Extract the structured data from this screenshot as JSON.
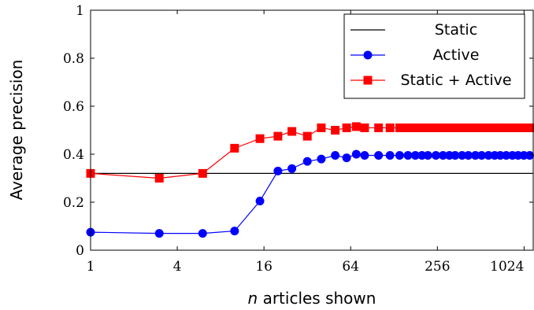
{
  "chart_data": {
    "type": "line",
    "title": "",
    "xlabel": "n articles shown",
    "xlabel_italic_prefix": "n",
    "xlabel_rest": " articles shown",
    "ylabel": "Average precision",
    "x_scale": "log2",
    "xlim": [
      1,
      1200
    ],
    "ylim": [
      0,
      1
    ],
    "x_ticks": [
      1,
      4,
      16,
      64,
      256,
      1024
    ],
    "x_tick_labels": [
      "1",
      "4",
      "16",
      "64",
      "256",
      "1024"
    ],
    "y_ticks": [
      0,
      0.2,
      0.4,
      0.6,
      0.8,
      1
    ],
    "y_tick_labels": [
      "0",
      "0.2",
      "0.4",
      "0.6",
      "0.8",
      "1"
    ],
    "grid": false,
    "legend_position": "top-right",
    "series": [
      {
        "name": "Static",
        "color": "#000000",
        "marker": "none",
        "x": [
          1,
          1200
        ],
        "y": [
          0.32,
          0.32
        ]
      },
      {
        "name": "Active",
        "color": "#0000ff",
        "marker": "circle",
        "x": [
          1,
          3,
          6,
          10,
          15,
          20,
          25,
          32,
          40,
          50,
          60,
          70,
          80,
          100,
          120,
          140,
          160,
          180,
          200,
          220,
          250,
          280,
          310,
          340,
          380,
          420,
          470,
          520,
          580,
          640,
          700,
          770,
          850,
          930,
          1020,
          1120
        ],
        "y": [
          0.075,
          0.07,
          0.07,
          0.08,
          0.205,
          0.33,
          0.34,
          0.37,
          0.38,
          0.395,
          0.385,
          0.4,
          0.395,
          0.395,
          0.395,
          0.395,
          0.395,
          0.395,
          0.395,
          0.395,
          0.395,
          0.395,
          0.395,
          0.395,
          0.395,
          0.395,
          0.395,
          0.395,
          0.395,
          0.395,
          0.395,
          0.395,
          0.395,
          0.395,
          0.395,
          0.395
        ]
      },
      {
        "name": "Static + Active",
        "color": "#ff0000",
        "marker": "square",
        "x": [
          1,
          3,
          6,
          10,
          15,
          20,
          25,
          32,
          40,
          50,
          60,
          70,
          80,
          100,
          120,
          140,
          160,
          180,
          200,
          220,
          250,
          280,
          310,
          340,
          380,
          420,
          470,
          520,
          580,
          640,
          700,
          770,
          850,
          930,
          1020,
          1120
        ],
        "y": [
          0.32,
          0.3,
          0.32,
          0.425,
          0.465,
          0.475,
          0.495,
          0.475,
          0.51,
          0.5,
          0.51,
          0.515,
          0.51,
          0.51,
          0.51,
          0.51,
          0.51,
          0.51,
          0.51,
          0.51,
          0.51,
          0.51,
          0.51,
          0.51,
          0.51,
          0.51,
          0.51,
          0.51,
          0.51,
          0.51,
          0.51,
          0.51,
          0.51,
          0.51,
          0.51,
          0.51
        ]
      }
    ]
  }
}
